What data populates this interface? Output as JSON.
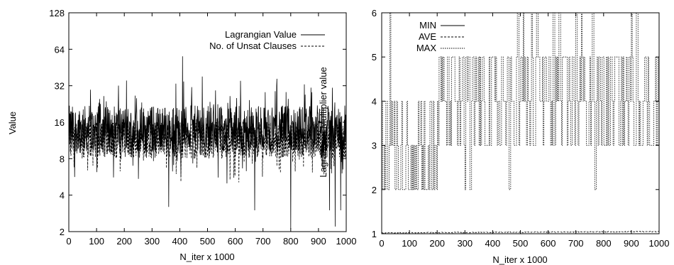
{
  "chart_data": [
    {
      "type": "line",
      "ylabel": "Value",
      "xlabel": "N_iter x 1000",
      "overlay_label": "Lagrangian Multiplier value",
      "yscale": "log2",
      "xlim": [
        0,
        1000
      ],
      "ylim": [
        2,
        128
      ],
      "xticks": [
        "0",
        "100",
        "200",
        "300",
        "400",
        "500",
        "600",
        "700",
        "800",
        "900",
        "1000"
      ],
      "yticks": [
        "2",
        "4",
        "8",
        "16",
        "32",
        "64",
        "128"
      ],
      "legend_position": "top-right",
      "grid": false,
      "series": [
        {
          "name": "Lagrangian Value",
          "style": "solid",
          "typical_range": [
            9,
            22
          ],
          "x": [
            0,
            360,
            410,
            570,
            670,
            800,
            940,
            960,
            980,
            1000
          ],
          "y": [
            14,
            3.2,
            56,
            5,
            3,
            2.1,
            3,
            2.2,
            3,
            16
          ]
        },
        {
          "name": "No. of Unsat Clauses",
          "style": "dashed",
          "typical_range": [
            8,
            16
          ],
          "x": [
            0,
            500,
            1000
          ],
          "y": [
            11,
            10,
            11
          ]
        }
      ]
    },
    {
      "type": "line",
      "xlabel": "N_iter x 1000",
      "xlim": [
        0,
        1000
      ],
      "ylim": [
        1,
        6
      ],
      "xticks": [
        "0",
        "100",
        "200",
        "300",
        "400",
        "500",
        "600",
        "700",
        "800",
        "900",
        "1000"
      ],
      "yticks": [
        "1",
        "2",
        "3",
        "4",
        "5",
        "6"
      ],
      "legend_position": "top-left",
      "grid": false,
      "series": [
        {
          "name": "MIN",
          "style": "solid",
          "x": [
            0,
            1000
          ],
          "y": [
            1,
            1
          ]
        },
        {
          "name": "AVE",
          "style": "dashed",
          "x": [
            0,
            1000
          ],
          "y": [
            1.02,
            1.05
          ]
        },
        {
          "name": "MAX",
          "style": "dotted",
          "levels": [
            2,
            3,
            4,
            5,
            6
          ],
          "dominant_ranges": [
            [
              0,
              200,
              2,
              4
            ],
            [
              200,
              400,
              3,
              5
            ],
            [
              400,
              1000,
              3,
              5
            ]
          ],
          "spikes_to_6_at": [
            30,
            490,
            510,
            540,
            560,
            620,
            640,
            700,
            720,
            760,
            900,
            920
          ],
          "drops_to_2_at": [
            50,
            80,
            120,
            160,
            180,
            300,
            320,
            460,
            560,
            770
          ]
        }
      ]
    }
  ]
}
